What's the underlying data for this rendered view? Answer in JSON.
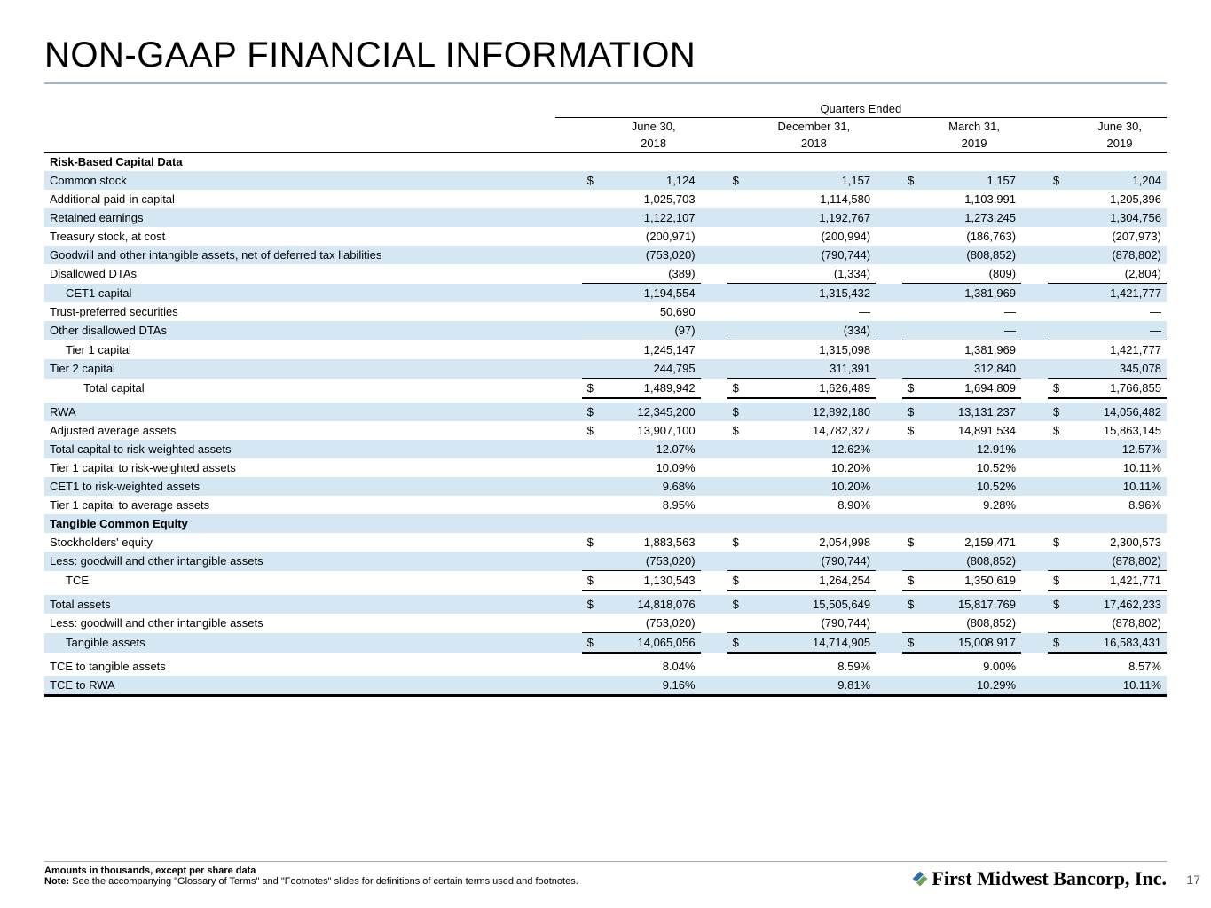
{
  "title": "NON-GAAP FINANCIAL INFORMATION",
  "super_header": "Quarters Ended",
  "col_headers": [
    {
      "l1": "June 30,",
      "l2": "2018"
    },
    {
      "l1": "December 31,",
      "l2": "2018"
    },
    {
      "l1": "March 31,",
      "l2": "2019"
    },
    {
      "l1": "June 30,",
      "l2": "2019"
    }
  ],
  "rows": [
    {
      "type": "section",
      "label": "Risk-Based Capital Data"
    },
    {
      "type": "data",
      "shade": true,
      "label": "Common stock",
      "dollar": true,
      "vals": [
        "1,124",
        "1,157",
        "1,157",
        "1,204"
      ]
    },
    {
      "type": "data",
      "label": "Additional paid-in capital",
      "vals": [
        "1,025,703",
        "1,114,580",
        "1,103,991",
        "1,205,396"
      ]
    },
    {
      "type": "data",
      "shade": true,
      "label": "Retained earnings",
      "vals": [
        "1,122,107",
        "1,192,767",
        "1,273,245",
        "1,304,756"
      ]
    },
    {
      "type": "data",
      "label": "Treasury stock, at cost",
      "vals": [
        "(200,971)",
        "(200,994)",
        "(186,763)",
        "(207,973)"
      ]
    },
    {
      "type": "data",
      "shade": true,
      "label": "Goodwill and other intangible assets, net of deferred tax liabilities",
      "vals": [
        "(753,020)",
        "(790,744)",
        "(808,852)",
        "(878,802)"
      ]
    },
    {
      "type": "data",
      "label": "Disallowed DTAs",
      "bbot": "thin",
      "vals": [
        "(389)",
        "(1,334)",
        "(809)",
        "(2,804)"
      ]
    },
    {
      "type": "data",
      "shade": true,
      "indent": 1,
      "label": "CET1 capital",
      "vals": [
        "1,194,554",
        "1,315,432",
        "1,381,969",
        "1,421,777"
      ]
    },
    {
      "type": "data",
      "label": "Trust-preferred securities",
      "vals": [
        "50,690",
        "—",
        "—",
        "—"
      ]
    },
    {
      "type": "data",
      "shade": true,
      "label": "Other disallowed DTAs",
      "bbot": "thin",
      "vals": [
        "(97)",
        "(334)",
        "—",
        "—"
      ]
    },
    {
      "type": "data",
      "indent": 1,
      "label": "Tier 1 capital",
      "vals": [
        "1,245,147",
        "1,315,098",
        "1,381,969",
        "1,421,777"
      ]
    },
    {
      "type": "data",
      "shade": true,
      "label": "Tier 2 capital",
      "bbot": "thin",
      "vals": [
        "244,795",
        "311,391",
        "312,840",
        "345,078"
      ]
    },
    {
      "type": "data",
      "indent": 2,
      "label": "Total capital",
      "dollar": true,
      "bbot": "thick",
      "vals": [
        "1,489,942",
        "1,626,489",
        "1,694,809",
        "1,766,855"
      ]
    },
    {
      "type": "spacer"
    },
    {
      "type": "data",
      "shade": true,
      "label": "RWA",
      "dollar": true,
      "vals": [
        "12,345,200",
        "12,892,180",
        "13,131,237",
        "14,056,482"
      ]
    },
    {
      "type": "data",
      "label": "Adjusted average assets",
      "dollar": true,
      "vals": [
        "13,907,100",
        "14,782,327",
        "14,891,534",
        "15,863,145"
      ]
    },
    {
      "type": "data",
      "shade": true,
      "label": "Total capital to risk-weighted assets",
      "vals": [
        "12.07%",
        "12.62%",
        "12.91%",
        "12.57%"
      ]
    },
    {
      "type": "data",
      "label": "Tier 1 capital to risk-weighted assets",
      "vals": [
        "10.09%",
        "10.20%",
        "10.52%",
        "10.11%"
      ]
    },
    {
      "type": "data",
      "shade": true,
      "label": "CET1 to risk-weighted assets",
      "vals": [
        "9.68%",
        "10.20%",
        "10.52%",
        "10.11%"
      ]
    },
    {
      "type": "data",
      "label": "Tier 1 capital to average assets",
      "vals": [
        "8.95%",
        "8.90%",
        "9.28%",
        "8.96%"
      ]
    },
    {
      "type": "section",
      "shade": true,
      "label": "Tangible Common Equity"
    },
    {
      "type": "data",
      "label": "Stockholders' equity",
      "dollar": true,
      "vals": [
        "1,883,563",
        "2,054,998",
        "2,159,471",
        "2,300,573"
      ]
    },
    {
      "type": "data",
      "shade": true,
      "label": "Less: goodwill and other intangible assets",
      "bbot": "thin",
      "vals": [
        "(753,020)",
        "(790,744)",
        "(808,852)",
        "(878,802)"
      ]
    },
    {
      "type": "data",
      "indent": 1,
      "label": "TCE",
      "dollar": true,
      "bbot": "thick",
      "vals": [
        "1,130,543",
        "1,264,254",
        "1,350,619",
        "1,421,771"
      ]
    },
    {
      "type": "spacer"
    },
    {
      "type": "data",
      "shade": true,
      "label": "Total assets",
      "dollar": true,
      "vals": [
        "14,818,076",
        "15,505,649",
        "15,817,769",
        "17,462,233"
      ]
    },
    {
      "type": "data",
      "label": "Less: goodwill and other intangible assets",
      "bbot": "thin",
      "vals": [
        "(753,020)",
        "(790,744)",
        "(808,852)",
        "(878,802)"
      ]
    },
    {
      "type": "data",
      "shade": true,
      "indent": 1,
      "label": "Tangible assets",
      "dollar": true,
      "bbot": "thick",
      "vals": [
        "14,065,056",
        "14,714,905",
        "15,008,917",
        "16,583,431"
      ]
    },
    {
      "type": "spacer"
    },
    {
      "type": "data",
      "label": "TCE to tangible assets",
      "vals": [
        "8.04%",
        "8.59%",
        "9.00%",
        "8.57%"
      ]
    },
    {
      "type": "data",
      "shade": true,
      "label": "TCE to RWA",
      "tbot": true,
      "vals": [
        "9.16%",
        "9.81%",
        "10.29%",
        "10.11%"
      ]
    }
  ],
  "footer": {
    "line1": "Amounts in thousands, except per share data",
    "line2_bold": "Note:",
    "line2_rest": " See the accompanying \"Glossary of Terms\" and \"Footnotes\" slides for definitions of certain terms used and footnotes."
  },
  "company": "First Midwest Bancorp, Inc.",
  "page": "17",
  "colors": {
    "shade": "#d5e7f2",
    "rule": "#9db8cf"
  }
}
